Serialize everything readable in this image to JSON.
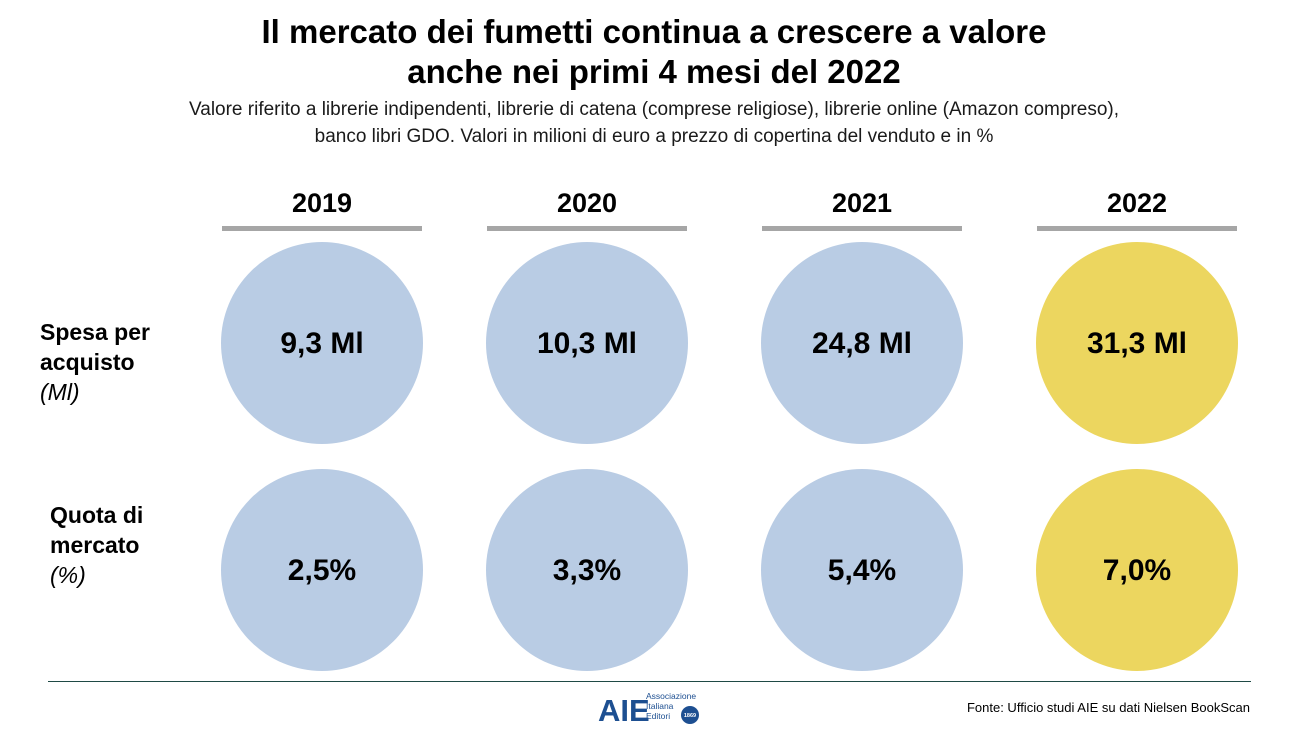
{
  "title_line1": "Il mercato dei fumetti continua a crescere a valore",
  "title_line2": "anche nei primi 4 mesi del 2022",
  "subtitle_line1": "Valore riferito a librerie indipendenti, librerie di catena (comprese religiose), librerie online (Amazon compreso),",
  "subtitle_line2": "banco libri GDO. Valori in milioni di euro a prezzo di copertina del venduto e in %",
  "rows": [
    {
      "label_line1": "Spesa per",
      "label_line2": "acquisto",
      "unit": "(Ml)"
    },
    {
      "label_line1": "Quota di",
      "label_line2": "mercato",
      "unit": "(%)"
    }
  ],
  "chart_data": {
    "type": "table",
    "categories": [
      "2019",
      "2020",
      "2021",
      "2022"
    ],
    "series": [
      {
        "values": [
          9.3,
          10.3,
          24.8,
          31.3
        ],
        "labels": [
          "9,3 Ml",
          "10,3 Ml",
          "24,8 Ml",
          "31,3 Ml"
        ]
      },
      {
        "values": [
          2.5,
          3.3,
          5.4,
          7.0
        ],
        "labels": [
          "2,5%",
          "3,3%",
          "5,4%",
          "7,0%"
        ]
      }
    ],
    "colors": {
      "default": "#b9cce4",
      "highlight": "#ecd65f",
      "header_rule": "#a6a6a6"
    },
    "highlight_index": 3
  },
  "logo": {
    "text": "AIE",
    "line1": "Associazione",
    "line2": "Italiana",
    "line3": "Editori",
    "badge": "1869"
  },
  "source": "Fonte: Ufficio studi AIE su dati Nielsen BookScan"
}
